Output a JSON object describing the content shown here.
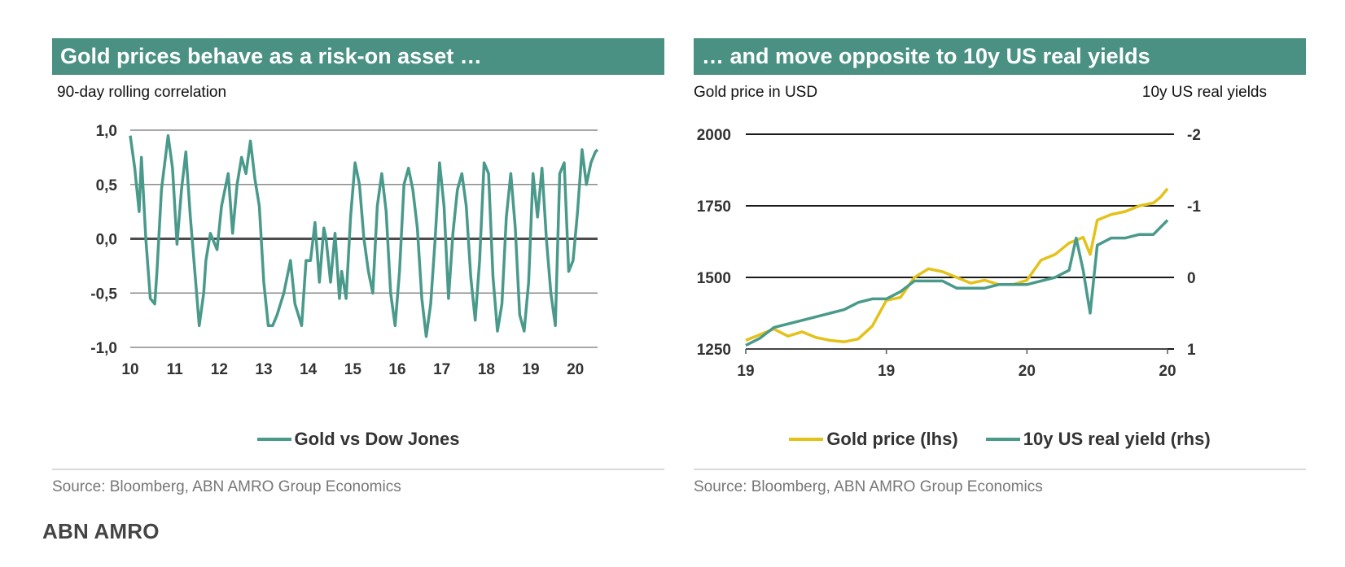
{
  "brand": "ABN AMRO",
  "left_panel": {
    "title": "Gold prices behave as a risk-on asset …",
    "axis_caption": "90-day rolling correlation",
    "source": "Source: Bloomberg, ABN AMRO Group Economics",
    "colors": {
      "series": "#4a9a8b",
      "grid": "#8c8c8c",
      "zero": "#4d4d4d"
    }
  },
  "right_panel": {
    "title": "… and move opposite to 10y US real yields",
    "axis_caption_left": "Gold price in USD",
    "axis_caption_right": "10y US real yields",
    "source": "Source: Bloomberg, ABN AMRO Group Economics",
    "colors": {
      "gold": "#e3c21a",
      "yield": "#4a9a8b",
      "grid": "#1a1a1a"
    }
  },
  "chart_data": [
    {
      "type": "line",
      "title": "Gold prices behave as a risk-on asset …",
      "ylabel": "90-day rolling correlation",
      "xlabel": "",
      "ylim": [
        -1.0,
        1.0
      ],
      "yticks": [
        1.0,
        0.5,
        0.0,
        -0.5,
        -1.0
      ],
      "ytick_labels": [
        "1,0",
        "0,5",
        "0,0",
        "-0,5",
        "-1,0"
      ],
      "xlim": [
        10,
        20.5
      ],
      "xticks": [
        10,
        11,
        12,
        13,
        14,
        15,
        16,
        17,
        18,
        19,
        20
      ],
      "xtick_labels": [
        "10",
        "11",
        "12",
        "13",
        "14",
        "15",
        "16",
        "17",
        "18",
        "19",
        "20"
      ],
      "series": [
        {
          "name": "Gold vs Dow Jones",
          "x": [
            10.0,
            10.1,
            10.2,
            10.25,
            10.35,
            10.45,
            10.55,
            10.6,
            10.7,
            10.85,
            10.95,
            11.05,
            11.15,
            11.25,
            11.35,
            11.45,
            11.55,
            11.65,
            11.7,
            11.8,
            11.95,
            12.05,
            12.2,
            12.3,
            12.4,
            12.5,
            12.6,
            12.7,
            12.8,
            12.9,
            13.0,
            13.1,
            13.2,
            13.3,
            13.45,
            13.6,
            13.7,
            13.85,
            13.95,
            14.05,
            14.15,
            14.25,
            14.35,
            14.4,
            14.5,
            14.6,
            14.7,
            14.75,
            14.85,
            14.95,
            15.05,
            15.15,
            15.25,
            15.35,
            15.45,
            15.55,
            15.65,
            15.75,
            15.85,
            15.95,
            16.05,
            16.15,
            16.25,
            16.35,
            16.45,
            16.55,
            16.65,
            16.75,
            16.85,
            16.95,
            17.05,
            17.15,
            17.25,
            17.35,
            17.45,
            17.55,
            17.65,
            17.75,
            17.85,
            17.95,
            18.05,
            18.15,
            18.25,
            18.35,
            18.45,
            18.55,
            18.65,
            18.75,
            18.85,
            18.95,
            19.05,
            19.15,
            19.25,
            19.35,
            19.45,
            19.55,
            19.65,
            19.75,
            19.85,
            19.95,
            20.05,
            20.15,
            20.25,
            20.35,
            20.45,
            20.5
          ],
          "y": [
            0.95,
            0.65,
            0.25,
            0.75,
            0.0,
            -0.55,
            -0.6,
            -0.3,
            0.45,
            0.95,
            0.65,
            -0.05,
            0.45,
            0.8,
            0.2,
            -0.3,
            -0.8,
            -0.5,
            -0.2,
            0.05,
            -0.1,
            0.3,
            0.6,
            0.05,
            0.5,
            0.75,
            0.6,
            0.9,
            0.55,
            0.3,
            -0.4,
            -0.8,
            -0.8,
            -0.7,
            -0.5,
            -0.2,
            -0.6,
            -0.8,
            -0.2,
            -0.2,
            0.15,
            -0.4,
            0.1,
            0.0,
            -0.4,
            0.05,
            -0.55,
            -0.3,
            -0.55,
            0.2,
            0.7,
            0.5,
            0.0,
            -0.3,
            -0.5,
            0.3,
            0.6,
            0.25,
            -0.5,
            -0.8,
            -0.3,
            0.5,
            0.65,
            0.45,
            0.1,
            -0.55,
            -0.9,
            -0.6,
            0.0,
            0.7,
            0.3,
            -0.55,
            0.05,
            0.45,
            0.6,
            0.3,
            -0.35,
            -0.75,
            -0.2,
            0.7,
            0.6,
            -0.35,
            -0.85,
            -0.6,
            0.2,
            0.6,
            0.1,
            -0.7,
            -0.85,
            -0.4,
            0.6,
            0.2,
            0.65,
            0.0,
            -0.5,
            -0.8,
            0.6,
            0.7,
            -0.3,
            -0.2,
            0.25,
            0.82,
            0.5,
            0.7,
            0.8,
            0.82
          ]
        }
      ],
      "legend": [
        "Gold vs Dow Jones"
      ]
    },
    {
      "type": "line",
      "title": "… and move opposite to 10y US real yields",
      "ylabel": "Gold price in USD",
      "y2label": "10y US real yields",
      "ylim": [
        1250,
        2000
      ],
      "yticks": [
        2000,
        1750,
        1500,
        1250
      ],
      "ytick_labels": [
        "2000",
        "1750",
        "1500",
        "1250"
      ],
      "y2lim": [
        1,
        -2
      ],
      "y2ticks": [
        -2,
        -1,
        0,
        1
      ],
      "y2tick_labels": [
        "-2",
        "-1",
        "0",
        "1"
      ],
      "xlim": [
        0,
        3
      ],
      "xticks": [
        0,
        1,
        2,
        3
      ],
      "xtick_labels": [
        "19",
        "19",
        "20",
        "20"
      ],
      "series": [
        {
          "name": "Gold price (lhs)",
          "axis": "left",
          "x": [
            0.0,
            0.1,
            0.2,
            0.3,
            0.4,
            0.5,
            0.6,
            0.7,
            0.8,
            0.9,
            1.0,
            1.1,
            1.2,
            1.3,
            1.4,
            1.5,
            1.6,
            1.7,
            1.8,
            1.9,
            2.0,
            2.1,
            2.2,
            2.3,
            2.4,
            2.45,
            2.5,
            2.6,
            2.7,
            2.8,
            2.9,
            2.95,
            3.0
          ],
          "y": [
            1280,
            1300,
            1320,
            1295,
            1310,
            1290,
            1280,
            1275,
            1285,
            1330,
            1420,
            1430,
            1500,
            1530,
            1520,
            1500,
            1480,
            1490,
            1475,
            1475,
            1490,
            1560,
            1580,
            1620,
            1640,
            1580,
            1700,
            1720,
            1730,
            1750,
            1760,
            1780,
            1810
          ]
        },
        {
          "name": "10y US real yield (rhs)",
          "axis": "right",
          "x": [
            0.0,
            0.1,
            0.2,
            0.3,
            0.4,
            0.5,
            0.6,
            0.7,
            0.8,
            0.9,
            1.0,
            1.1,
            1.2,
            1.3,
            1.4,
            1.5,
            1.6,
            1.7,
            1.8,
            1.9,
            2.0,
            2.1,
            2.2,
            2.3,
            2.35,
            2.4,
            2.45,
            2.5,
            2.6,
            2.7,
            2.8,
            2.9,
            3.0
          ],
          "y": [
            0.95,
            0.85,
            0.7,
            0.65,
            0.6,
            0.55,
            0.5,
            0.45,
            0.35,
            0.3,
            0.3,
            0.2,
            0.05,
            0.05,
            0.05,
            0.15,
            0.15,
            0.15,
            0.1,
            0.1,
            0.1,
            0.05,
            0.0,
            -0.1,
            -0.55,
            -0.1,
            0.5,
            -0.45,
            -0.55,
            -0.55,
            -0.6,
            -0.6,
            -0.8
          ]
        }
      ],
      "legend": [
        "Gold price (lhs)",
        "10y US real yield (rhs)"
      ]
    }
  ]
}
